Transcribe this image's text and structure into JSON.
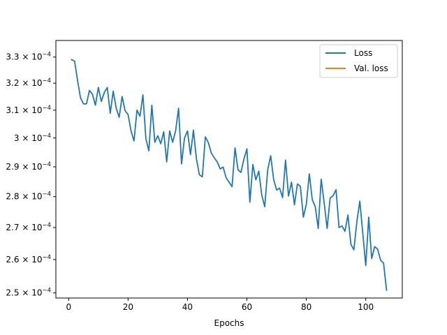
{
  "chart_data": {
    "type": "line",
    "title": "",
    "xlabel": "Epochs",
    "ylabel": "",
    "xlim": [
      -4.3,
      112.3
    ],
    "ylim": [
      0.0002485,
      0.0003365
    ],
    "yscale": "log",
    "grid": false,
    "legend_position": "upper right",
    "x_ticks": [
      0,
      20,
      40,
      60,
      80,
      100
    ],
    "x_tick_labels": [
      "0",
      "20",
      "40",
      "60",
      "80",
      "100"
    ],
    "y_ticks": [
      0.00025,
      0.00026,
      0.00027,
      0.00028,
      0.00029,
      0.0003,
      0.00031,
      0.00032,
      0.00033
    ],
    "y_tick_labels": [
      {
        "mantissa": "2.5",
        "times": "×",
        "base": "10",
        "exponent": "−4"
      },
      {
        "mantissa": "2.6",
        "times": "×",
        "base": "10",
        "exponent": "−4"
      },
      {
        "mantissa": "2.7",
        "times": "×",
        "base": "10",
        "exponent": "−4"
      },
      {
        "mantissa": "2.8",
        "times": "×",
        "base": "10",
        "exponent": "−4"
      },
      {
        "mantissa": "2.9",
        "times": "×",
        "base": "10",
        "exponent": "−4"
      },
      {
        "mantissa": "3",
        "times": "×",
        "base": "10",
        "exponent": "−4"
      },
      {
        "mantissa": "3.1",
        "times": "×",
        "base": "10",
        "exponent": "−4"
      },
      {
        "mantissa": "3.2",
        "times": "×",
        "base": "10",
        "exponent": "−4"
      },
      {
        "mantissa": "3.3",
        "times": "×",
        "base": "10",
        "exponent": "−4"
      }
    ],
    "series": [
      {
        "name": "Loss",
        "color": "#1f77b4",
        "x": [
          1,
          2,
          3,
          4,
          5,
          6,
          7,
          8,
          9,
          10,
          11,
          12,
          13,
          14,
          15,
          16,
          17,
          18,
          19,
          20,
          21,
          22,
          23,
          24,
          25,
          26,
          27,
          28,
          29,
          30,
          31,
          32,
          33,
          34,
          35,
          36,
          37,
          38,
          39,
          40,
          41,
          42,
          43,
          44,
          45,
          46,
          47,
          48,
          49,
          50,
          51,
          52,
          53,
          54,
          55,
          56,
          57,
          58,
          59,
          60,
          61,
          62,
          63,
          64,
          65,
          66,
          67,
          68,
          69,
          70,
          71,
          72,
          73,
          74,
          75,
          76,
          77,
          78,
          79,
          80,
          81,
          82,
          83,
          84,
          85,
          86,
          87,
          88,
          89,
          90,
          91,
          92,
          93,
          94,
          95,
          96,
          97,
          98,
          99,
          100,
          101,
          102,
          103,
          104,
          105,
          106,
          107
        ],
        "y": [
          0.000329,
          0.0003284,
          0.000321,
          0.0003145,
          0.0003123,
          0.0003123,
          0.0003173,
          0.0003159,
          0.0003118,
          0.0003184,
          0.0003132,
          0.0003165,
          0.0003184,
          0.0003089,
          0.000317,
          0.0003108,
          0.0003074,
          0.000315,
          0.0003098,
          0.0003084,
          0.0003025,
          0.000299,
          0.00031,
          0.0003078,
          0.0003156,
          0.0002997,
          0.0002955,
          0.0003118,
          0.0002985,
          0.0003008,
          0.000298,
          0.0003022,
          0.0002917,
          0.0003025,
          0.0002985,
          0.0003025,
          0.0003107,
          0.000291,
          0.0003,
          0.0003025,
          0.0002942,
          0.0003028,
          0.0002928,
          0.0002873,
          0.0002866,
          0.0003004,
          0.0002984,
          0.0002948,
          0.0002931,
          0.0002917,
          0.0002893,
          0.0002899,
          0.0002863,
          0.0002848,
          0.0002833,
          0.0002965,
          0.000289,
          0.0002881,
          0.0002927,
          0.0002962,
          0.0002782,
          0.0002908,
          0.0002856,
          0.0002885,
          0.0002805,
          0.0002767,
          0.000289,
          0.0002938,
          0.0002857,
          0.0002822,
          0.0002828,
          0.0002797,
          0.0002923,
          0.0002802,
          0.0002848,
          0.0002773,
          0.0002842,
          0.0002834,
          0.0002733,
          0.0002775,
          0.0002876,
          0.000279,
          0.0002767,
          0.0002697,
          0.0002858,
          0.000278,
          0.0002697,
          0.0002795,
          0.0002803,
          0.0002823,
          0.00027,
          0.0002705,
          0.0002688,
          0.000274,
          0.0002647,
          0.000263,
          0.0002718,
          0.0002785,
          0.0002682,
          0.0002582,
          0.0002733,
          0.0002603,
          0.000264,
          0.0002632,
          0.0002598,
          0.0002589,
          0.0002508
        ]
      },
      {
        "name": "Val. loss",
        "color": "#ff7f0e",
        "x": [],
        "y": []
      }
    ]
  }
}
